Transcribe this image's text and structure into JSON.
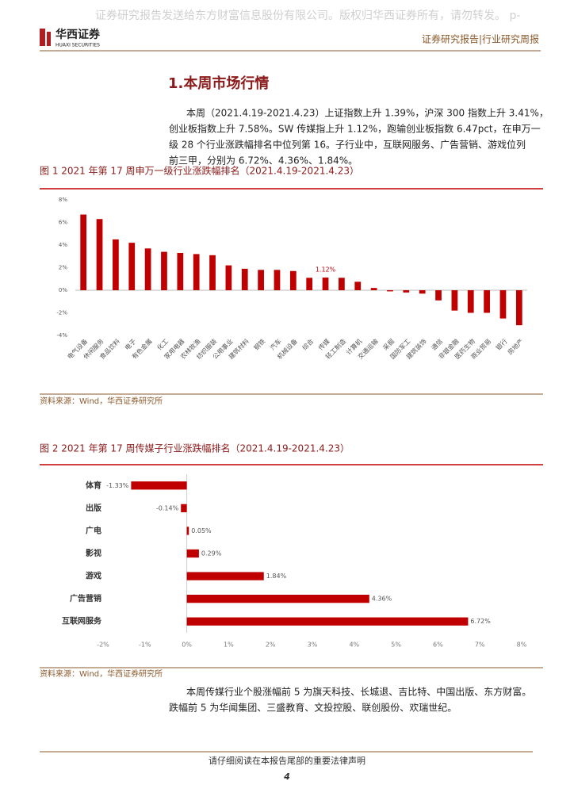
{
  "header": {
    "watermark": "证券研究报告发送给东方财富信息股份有限公司。版权归华西证券所有，请勿转发。 p-",
    "logo_cn": "华西证券",
    "logo_en": "HUAXI SECURITIES",
    "report_type": "证券研究报告|行业研究周报"
  },
  "section_title": "1.本周市场行情",
  "paragraphs": [
    {
      "lines": [
        "本周（2021.4.19-2021.4.23）上证指数上升 1.39%，沪深 300 指数上升 3.41%，",
        "创业板指数上升 7.58%。SW 传媒指上升 1.12%，跑输创业板指数 6.47pct，在申万一",
        "级 28 个行业涨跌幅排名中位列第 16。子行业中，互联网服务、广告营销、游戏位列",
        "前三甲，分别为 6.72%、4.36%、1.84%。"
      ]
    },
    {
      "lines": [
        "本周传媒行业个股涨幅前 5 为旗天科技、长城退、吉比特、中国出版、东方财富。",
        "跌幅前 5 为华闻集团、三盛教育、文投控股、联创股份、欢瑞世纪。"
      ]
    }
  ],
  "chart_data": [
    {
      "type": "bar",
      "title": "图 1 2021 年第 17 周申万一级行业涨跌幅排名（2021.4.19-2021.4.23）",
      "source": "资料来源：Wind，华西证券研究所",
      "categories": [
        "电气设备",
        "休闲服务",
        "食品饮料",
        "电子",
        "有色金属",
        "化工",
        "家用电器",
        "农林牧渔",
        "纺织服装",
        "公用事业",
        "建筑材料",
        "钢铁",
        "汽车",
        "机械设备",
        "综合",
        "传媒",
        "轻工制造",
        "计算机",
        "交通运输",
        "采掘",
        "国防军工",
        "建筑装饰",
        "通信",
        "非银金融",
        "医药生物",
        "商业贸易",
        "银行",
        "房地产"
      ],
      "values": [
        6.7,
        6.3,
        4.5,
        4.2,
        3.7,
        3.4,
        3.3,
        3.2,
        3.1,
        2.2,
        1.9,
        1.8,
        1.8,
        1.7,
        1.1,
        1.12,
        1.1,
        0.75,
        0.2,
        -0.1,
        -0.2,
        -0.3,
        -0.9,
        -1.8,
        -2.0,
        -2.0,
        -2.5,
        -3.1
      ],
      "value_labels": [
        null,
        null,
        null,
        null,
        null,
        null,
        null,
        null,
        null,
        null,
        null,
        null,
        null,
        null,
        null,
        "1.12%",
        null,
        null,
        null,
        null,
        null,
        null,
        null,
        null,
        null,
        null,
        null,
        null
      ],
      "color": "#c00000",
      "ylim": [
        -4,
        8
      ],
      "yticks": [
        {
          "value": -4,
          "label": "-4%"
        },
        {
          "value": -2,
          "label": "-2%"
        },
        {
          "value": 0,
          "label": "0%"
        },
        {
          "value": 2,
          "label": "2%"
        },
        {
          "value": 4,
          "label": "4%"
        },
        {
          "value": 6,
          "label": "6%"
        },
        {
          "value": 8,
          "label": "8%"
        }
      ]
    },
    {
      "type": "barh",
      "title": "图 2 2021 年第 17 周传媒子行业涨跌幅排名（2021.4.19-2021.4.23）",
      "source": "资料来源：Wind，华西证券研究所",
      "categories": [
        "体育",
        "出版",
        "广电",
        "影视",
        "游戏",
        "广告营销",
        "互联网服务"
      ],
      "values": [
        -1.33,
        -0.14,
        0.05,
        0.29,
        1.84,
        4.36,
        6.72
      ],
      "value_labels": [
        "-1.33%",
        "-0.14%",
        "0.05%",
        "0.29%",
        "1.84%",
        "4.36%",
        "6.72%"
      ],
      "color": "#c00000",
      "xlim": [
        -2,
        8
      ],
      "xticks": [
        {
          "value": -2,
          "label": "-2%"
        },
        {
          "value": -1,
          "label": "-1%"
        },
        {
          "value": 0,
          "label": "0%"
        },
        {
          "value": 1,
          "label": "1%"
        },
        {
          "value": 2,
          "label": "2%"
        },
        {
          "value": 3,
          "label": "3%"
        },
        {
          "value": 4,
          "label": "4%"
        },
        {
          "value": 5,
          "label": "5%"
        },
        {
          "value": 6,
          "label": "6%"
        },
        {
          "value": 7,
          "label": "7%"
        },
        {
          "value": 8,
          "label": "8%"
        }
      ]
    }
  ],
  "footer": {
    "notice": "请仔细阅读在本报告尾部的重要法律声明",
    "page": "4"
  }
}
